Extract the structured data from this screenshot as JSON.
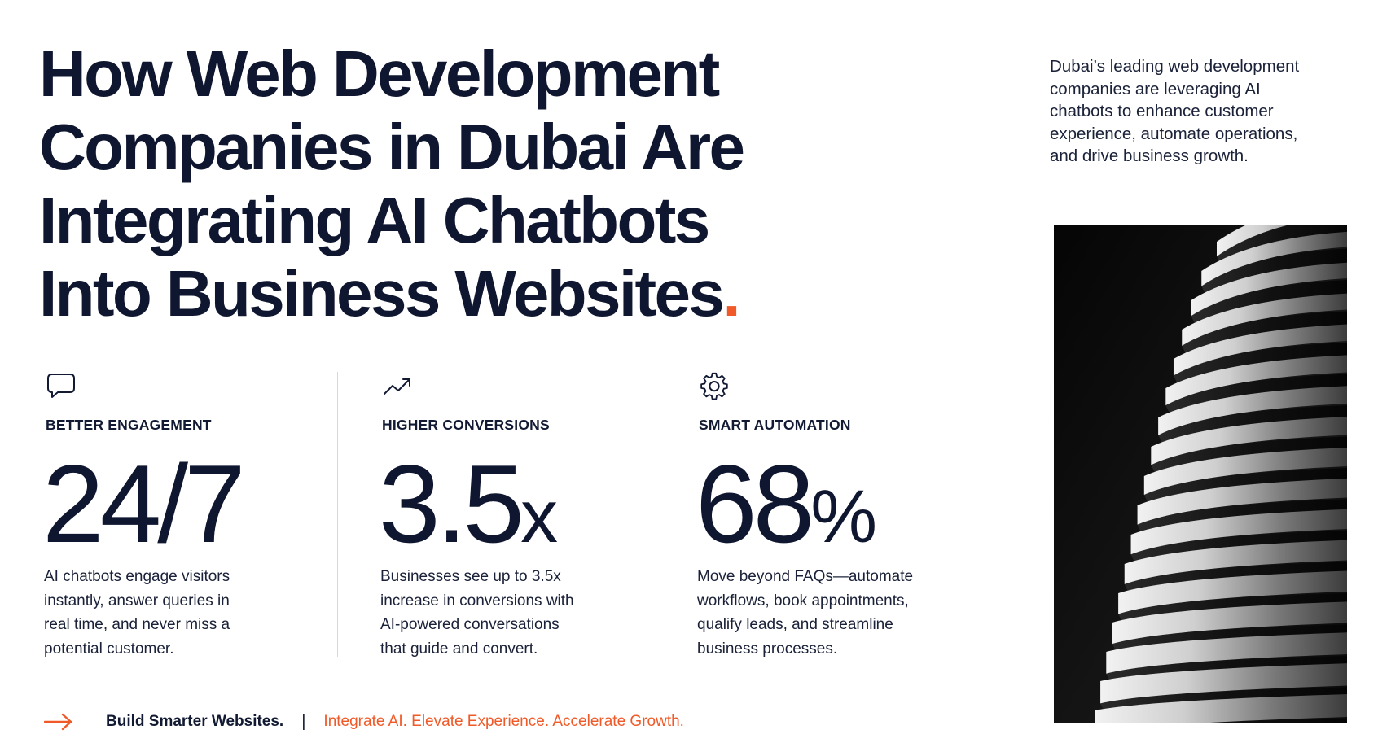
{
  "headline": {
    "lines": [
      "How Web Development",
      "Companies in Dubai Are",
      "Integrating AI Chatbots",
      "Into Business Websites"
    ],
    "accent": "."
  },
  "intro": {
    "lines": [
      "Dubai’s leading web development",
      "companies are leveraging AI",
      "chatbots to enhance customer",
      "experience, automate operations,",
      "and drive business growth."
    ]
  },
  "stats": [
    {
      "icon": "chat-bubble-icon",
      "label": "BETTER ENGAGEMENT",
      "value": "24/7",
      "suffix": "",
      "desc": [
        "AI chatbots engage visitors",
        "instantly, answer queries in",
        "real time, and never miss a",
        "potential customer."
      ]
    },
    {
      "icon": "trend-up-icon",
      "label": "HIGHER CONVERSIONS",
      "value": "3.5",
      "suffix": "x",
      "desc": [
        "Businesses see up to 3.5x",
        "increase in conversions with",
        "AI-powered conversations",
        "that guide and convert."
      ]
    },
    {
      "icon": "gear-icon",
      "label": "SMART AUTOMATION",
      "value": "68",
      "suffix": "%",
      "desc": [
        "Move beyond FAQs—automate",
        "workflows, book appointments,",
        "qualify leads, and streamline",
        "business processes."
      ]
    }
  ],
  "footer": {
    "icon": "arrow-right-icon",
    "cta": "Build Smarter Websites.",
    "separator": "|",
    "tagline": "Integrate AI. Elevate Experience. Accelerate Growth."
  },
  "image": {
    "subject": "building-facade-photo"
  },
  "colors": {
    "accent": "#f05a28",
    "text": "#0f1630",
    "divider": "#d6d8de"
  }
}
